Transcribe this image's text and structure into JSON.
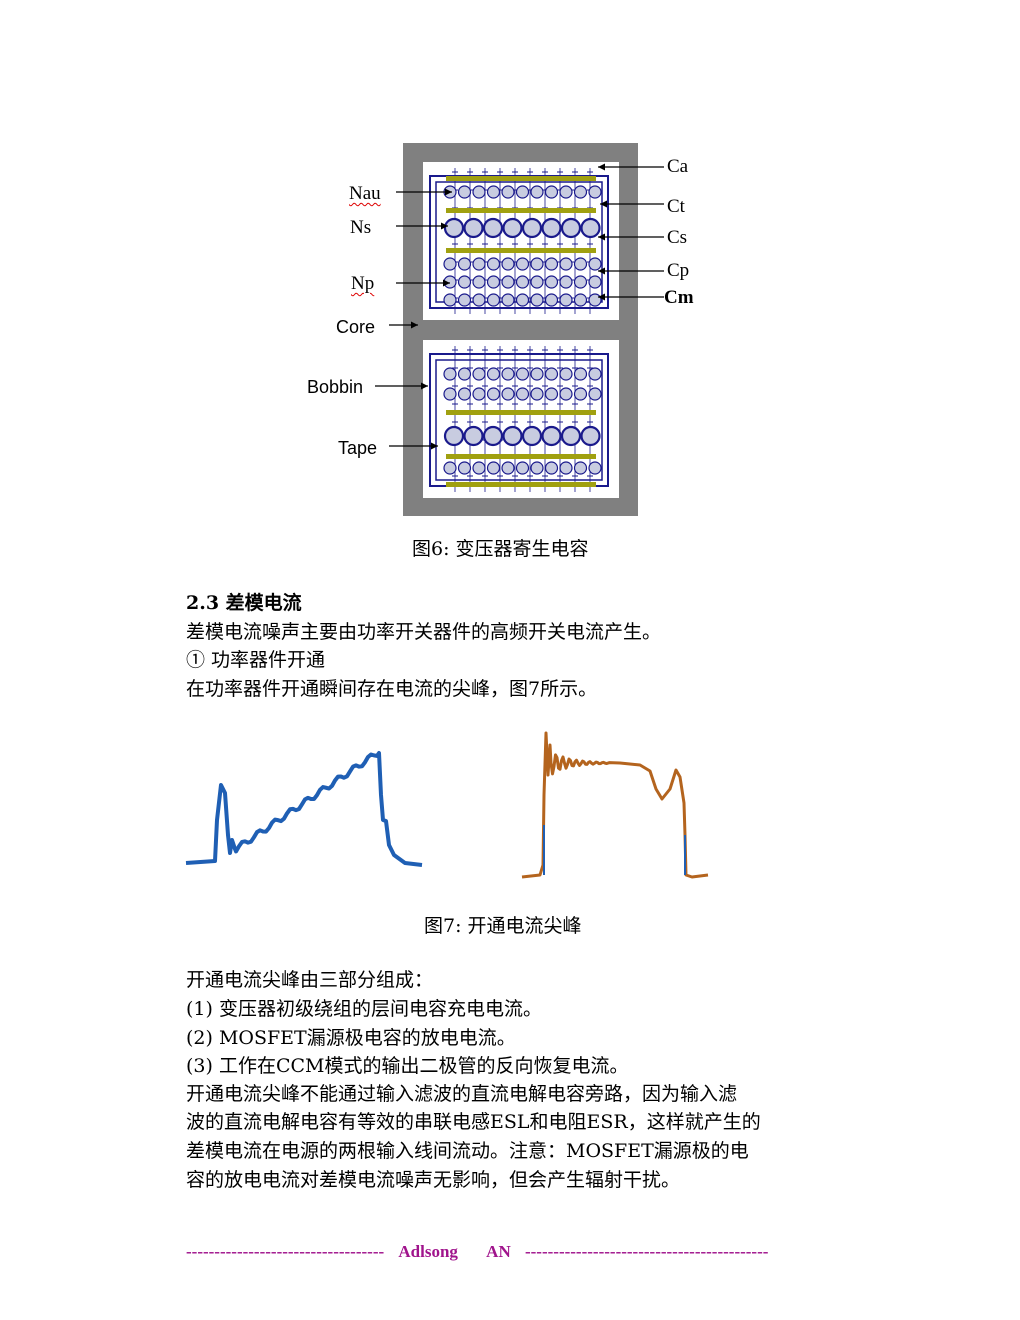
{
  "figure6": {
    "labels_left": [
      "Nau",
      "Ns",
      "Np",
      "Core",
      "Bobbin",
      "Tape"
    ],
    "labels_right": [
      "Ca",
      "Ct",
      "Cs",
      "Cp",
      "Cm"
    ],
    "caption": "图6: 变压器寄生电容",
    "colors": {
      "core": "#808080",
      "bobbin": "#1a1a8c",
      "tape": "#a0a010",
      "winding_fill": "#c8cce0"
    }
  },
  "section": {
    "heading": "2.3 差模电流",
    "lines": [
      "差模电流噪声主要由功率开关器件的高频开关电流产生。",
      "① 功率器件开通",
      "在功率器件开通瞬间存在电流的尖峰，图7所示。"
    ]
  },
  "figure7": {
    "caption": "图7: 开通电流尖峰",
    "colors": {
      "left_trace": "#1f5fb4",
      "right_trace": "#b4641e"
    }
  },
  "body": {
    "lines": [
      "开通电流尖峰由三部分组成：",
      "(1) 变压器初级绕组的层间电容充电电流。",
      "(2) MOSFET漏源极电容的放电电流。",
      "(3) 工作在CCM模式的输出二极管的反向恢复电流。",
      "开通电流尖峰不能通过输入滤波的直流电解电容旁路，因为输入滤",
      "波的直流电解电容有等效的串联电感ESL和电阻ESR，这样就产生的",
      "差模电流在电源的两根输入线间流动。注意：MOSFET漏源极的电",
      "容的放电电流对差模电流噪声无影响，但会产生辐射干扰。"
    ]
  },
  "footer": {
    "left_dashes": "-----------------------------------",
    "brand": "Adlsong",
    "code": "AN",
    "right_dashes": "-------------------------------------------"
  }
}
